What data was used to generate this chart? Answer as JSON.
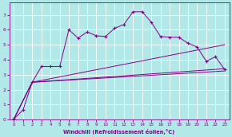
{
  "xlabel": "Windchill (Refroidissement éolien,°C)",
  "xlim": [
    -0.5,
    23.5
  ],
  "ylim": [
    0,
    7.8
  ],
  "xticks": [
    0,
    1,
    2,
    3,
    4,
    5,
    6,
    7,
    8,
    9,
    10,
    11,
    12,
    13,
    14,
    15,
    16,
    17,
    18,
    19,
    20,
    21,
    22,
    23
  ],
  "yticks": [
    0,
    1,
    2,
    3,
    4,
    5,
    6,
    7
  ],
  "bg_color": "#b2e8e8",
  "line_color": "#880088",
  "grid_color": "#c8e8e8",
  "main_x": [
    0,
    1,
    2,
    3,
    4,
    5,
    6,
    7,
    8,
    9,
    10,
    11,
    12,
    13,
    14,
    15,
    16,
    17,
    18,
    19,
    20,
    21,
    22,
    23
  ],
  "main_y": [
    0.05,
    0.65,
    2.5,
    3.55,
    3.55,
    3.55,
    6.0,
    5.45,
    5.85,
    5.6,
    5.55,
    6.1,
    6.35,
    7.2,
    7.2,
    6.5,
    5.55,
    5.5,
    5.5,
    5.1,
    4.85,
    3.9,
    4.2,
    3.35
  ],
  "trend1_x": [
    0,
    2,
    23
  ],
  "trend1_y": [
    0.05,
    2.5,
    5.0
  ],
  "trend2_x": [
    0,
    2,
    23
  ],
  "trend2_y": [
    0.05,
    2.5,
    3.4
  ],
  "trend3_x": [
    0,
    2,
    23
  ],
  "trend3_y": [
    0.05,
    2.5,
    3.25
  ]
}
